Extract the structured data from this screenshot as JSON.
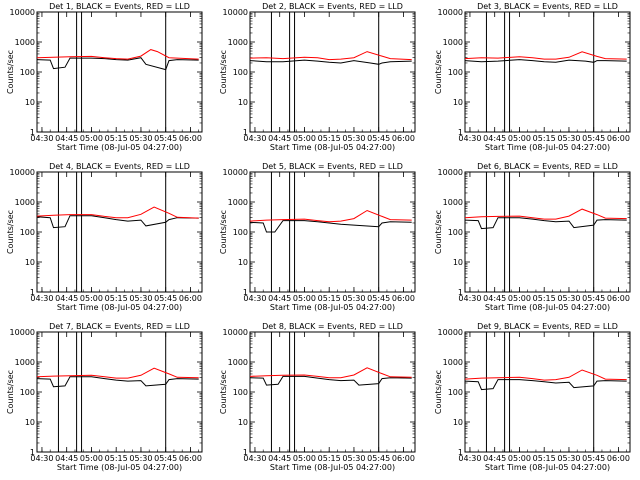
{
  "figure": {
    "ylabel": "Counts/sec",
    "xlabel": "Start Time (08-Jul-05 04:27:00)"
  },
  "chart_data": [
    {
      "type": "line",
      "title": "Det 1, BLACK = Events, RED = LLD",
      "ylabel": "Counts/sec",
      "xlabel": "Start Time (08-Jul-05 04:27:00)",
      "yscale": "log",
      "ylim": [
        1,
        10000
      ],
      "yticks": [
        "1",
        "10",
        "100",
        "1000",
        "10000"
      ],
      "xlim": [
        "04:27",
        "06:07"
      ],
      "xticks": [
        "04:30",
        "04:45",
        "05:00",
        "05:15",
        "05:30",
        "05:45",
        "06:00"
      ],
      "series": [
        {
          "name": "Events",
          "color": "#000000",
          "x": [
            "04:27",
            "04:35",
            "04:37",
            "04:44",
            "04:47",
            "05:00",
            "05:08",
            "05:15",
            "05:22",
            "05:30",
            "05:33",
            "05:45",
            "05:47",
            "05:52",
            "06:05"
          ],
          "y": [
            260,
            250,
            130,
            145,
            290,
            290,
            280,
            260,
            250,
            300,
            180,
            120,
            240,
            260,
            250
          ]
        },
        {
          "name": "LLD",
          "color": "#ff0000",
          "x": [
            "04:27",
            "04:37",
            "04:47",
            "05:00",
            "05:08",
            "05:15",
            "05:22",
            "05:30",
            "05:36",
            "05:40",
            "05:47",
            "05:52",
            "06:05"
          ],
          "y": [
            300,
            310,
            320,
            330,
            300,
            280,
            270,
            340,
            560,
            480,
            300,
            290,
            270
          ]
        }
      ],
      "vlines": [
        "04:40",
        "04:51",
        "04:54",
        "05:45"
      ]
    },
    {
      "type": "line",
      "title": "Det 2, BLACK = Events, RED = LLD",
      "ylabel": "Counts/sec",
      "xlabel": "Start Time (08-Jul-05 04:27:00)",
      "yscale": "log",
      "ylim": [
        1,
        10000
      ],
      "yticks": [
        "1",
        "10",
        "100",
        "1000",
        "10000"
      ],
      "xlim": [
        "04:27",
        "06:07"
      ],
      "xticks": [
        "04:30",
        "04:45",
        "05:00",
        "05:15",
        "05:30",
        "05:45",
        "06:00"
      ],
      "series": [
        {
          "name": "Events",
          "color": "#000000",
          "x": [
            "04:27",
            "04:37",
            "04:47",
            "05:00",
            "05:08",
            "05:15",
            "05:22",
            "05:30",
            "05:40",
            "05:45",
            "05:47",
            "05:52",
            "06:05"
          ],
          "y": [
            240,
            220,
            220,
            250,
            230,
            210,
            200,
            240,
            200,
            180,
            200,
            220,
            230
          ]
        },
        {
          "name": "LLD",
          "color": "#ff0000",
          "x": [
            "04:27",
            "04:37",
            "04:47",
            "05:00",
            "05:08",
            "05:15",
            "05:22",
            "05:30",
            "05:38",
            "05:47",
            "05:52",
            "06:05"
          ],
          "y": [
            290,
            300,
            280,
            310,
            300,
            260,
            270,
            300,
            480,
            340,
            280,
            260
          ]
        }
      ],
      "vlines": [
        "04:40",
        "04:51",
        "04:54",
        "05:45"
      ]
    },
    {
      "type": "line",
      "title": "Det 3, BLACK = Events, RED = LLD",
      "ylabel": "Counts/sec",
      "xlabel": "Start Time (08-Jul-05 04:27:00)",
      "yscale": "log",
      "ylim": [
        1,
        10000
      ],
      "yticks": [
        "1",
        "10",
        "100",
        "1000",
        "10000"
      ],
      "xlim": [
        "04:27",
        "06:07"
      ],
      "xticks": [
        "04:30",
        "04:45",
        "05:00",
        "05:15",
        "05:30",
        "05:45",
        "06:00"
      ],
      "series": [
        {
          "name": "Events",
          "color": "#000000",
          "x": [
            "04:27",
            "04:37",
            "04:47",
            "05:00",
            "05:08",
            "05:15",
            "05:22",
            "05:30",
            "05:40",
            "05:45",
            "05:47",
            "05:52",
            "06:05"
          ],
          "y": [
            240,
            220,
            230,
            260,
            240,
            220,
            210,
            250,
            230,
            210,
            240,
            240,
            230
          ]
        },
        {
          "name": "LLD",
          "color": "#ff0000",
          "x": [
            "04:27",
            "04:37",
            "04:47",
            "05:00",
            "05:08",
            "05:15",
            "05:22",
            "05:30",
            "05:38",
            "05:47",
            "05:52",
            "06:05"
          ],
          "y": [
            280,
            300,
            290,
            320,
            300,
            270,
            270,
            310,
            470,
            330,
            280,
            270
          ]
        }
      ],
      "vlines": [
        "04:40",
        "04:51",
        "04:54",
        "05:45"
      ]
    },
    {
      "type": "line",
      "title": "Det 4, BLACK = Events, RED = LLD",
      "ylabel": "Counts/sec",
      "xlabel": "Start Time (08-Jul-05 04:27:00)",
      "yscale": "log",
      "ylim": [
        1,
        10000
      ],
      "yticks": [
        "1",
        "10",
        "100",
        "1000",
        "10000"
      ],
      "xlim": [
        "04:27",
        "06:07"
      ],
      "xticks": [
        "04:30",
        "04:45",
        "05:00",
        "05:15",
        "05:30",
        "05:45",
        "06:00"
      ],
      "series": [
        {
          "name": "Events",
          "color": "#000000",
          "x": [
            "04:27",
            "04:35",
            "04:37",
            "04:44",
            "04:47",
            "05:00",
            "05:08",
            "05:15",
            "05:22",
            "05:30",
            "05:33",
            "05:45",
            "05:47",
            "05:52",
            "06:05"
          ],
          "y": [
            320,
            300,
            140,
            150,
            350,
            350,
            300,
            260,
            230,
            250,
            160,
            210,
            260,
            300,
            290
          ]
        },
        {
          "name": "LLD",
          "color": "#ff0000",
          "x": [
            "04:27",
            "04:37",
            "04:47",
            "05:00",
            "05:08",
            "05:15",
            "05:22",
            "05:30",
            "05:38",
            "05:47",
            "05:52",
            "06:05"
          ],
          "y": [
            340,
            360,
            380,
            380,
            330,
            300,
            300,
            390,
            680,
            420,
            310,
            290
          ]
        }
      ],
      "vlines": [
        "04:40",
        "04:51",
        "04:54",
        "05:45"
      ]
    },
    {
      "type": "line",
      "title": "Det 5, BLACK = Events, RED = LLD",
      "ylabel": "Counts/sec",
      "xlabel": "Start Time (08-Jul-05 04:27:00)",
      "yscale": "log",
      "ylim": [
        1,
        10000
      ],
      "yticks": [
        "1",
        "10",
        "100",
        "1000",
        "10000"
      ],
      "xlim": [
        "04:27",
        "06:07"
      ],
      "xticks": [
        "04:30",
        "04:45",
        "05:00",
        "05:15",
        "05:30",
        "05:45",
        "06:00"
      ],
      "series": [
        {
          "name": "Events",
          "color": "#000000",
          "x": [
            "04:27",
            "04:35",
            "04:37",
            "04:42",
            "04:47",
            "05:00",
            "05:08",
            "05:15",
            "05:22",
            "05:30",
            "05:45",
            "05:47",
            "05:52",
            "06:05"
          ],
          "y": [
            210,
            200,
            100,
            100,
            240,
            240,
            220,
            200,
            180,
            170,
            150,
            200,
            220,
            210
          ]
        },
        {
          "name": "LLD",
          "color": "#ff0000",
          "x": [
            "04:27",
            "04:37",
            "04:47",
            "05:00",
            "05:08",
            "05:15",
            "05:22",
            "05:30",
            "05:38",
            "05:47",
            "05:52",
            "06:05"
          ],
          "y": [
            230,
            250,
            260,
            270,
            240,
            220,
            230,
            280,
            520,
            330,
            260,
            250
          ]
        }
      ],
      "vlines": [
        "04:40",
        "04:51",
        "04:54",
        "05:45"
      ]
    },
    {
      "type": "line",
      "title": "Det 6, BLACK = Events, RED = LLD",
      "ylabel": "Counts/sec",
      "xlabel": "Start Time (08-Jul-05 04:27:00)",
      "yscale": "log",
      "ylim": [
        1,
        10000
      ],
      "yticks": [
        "1",
        "10",
        "100",
        "1000",
        "10000"
      ],
      "xlim": [
        "04:27",
        "06:07"
      ],
      "xticks": [
        "04:30",
        "04:45",
        "05:00",
        "05:15",
        "05:30",
        "05:45",
        "06:00"
      ],
      "series": [
        {
          "name": "Events",
          "color": "#000000",
          "x": [
            "04:27",
            "04:35",
            "04:37",
            "04:44",
            "04:47",
            "05:00",
            "05:08",
            "05:15",
            "05:22",
            "05:30",
            "05:33",
            "05:45",
            "05:47",
            "05:52",
            "06:05"
          ],
          "y": [
            250,
            240,
            130,
            140,
            300,
            300,
            270,
            240,
            220,
            230,
            140,
            170,
            250,
            260,
            250
          ]
        },
        {
          "name": "LLD",
          "color": "#ff0000",
          "x": [
            "04:27",
            "04:37",
            "04:47",
            "05:00",
            "05:08",
            "05:15",
            "05:22",
            "05:30",
            "05:38",
            "05:47",
            "05:52",
            "06:05"
          ],
          "y": [
            300,
            320,
            330,
            340,
            300,
            270,
            270,
            340,
            580,
            380,
            290,
            280
          ]
        }
      ],
      "vlines": [
        "04:40",
        "04:51",
        "04:54",
        "05:45"
      ]
    },
    {
      "type": "line",
      "title": "Det 7, BLACK = Events, RED = LLD",
      "ylabel": "Counts/sec",
      "xlabel": "Start Time (08-Jul-05 04:27:00)",
      "yscale": "log",
      "ylim": [
        1,
        10000
      ],
      "yticks": [
        "1",
        "10",
        "100",
        "1000",
        "10000"
      ],
      "xlim": [
        "04:27",
        "06:07"
      ],
      "xticks": [
        "04:30",
        "04:45",
        "05:00",
        "05:15",
        "05:30",
        "05:45",
        "06:00"
      ],
      "series": [
        {
          "name": "Events",
          "color": "#000000",
          "x": [
            "04:27",
            "04:35",
            "04:37",
            "04:44",
            "04:47",
            "05:00",
            "05:08",
            "05:15",
            "05:22",
            "05:30",
            "05:33",
            "05:45",
            "05:47",
            "05:52",
            "06:05"
          ],
          "y": [
            280,
            270,
            150,
            160,
            320,
            320,
            280,
            250,
            230,
            240,
            160,
            180,
            260,
            280,
            270
          ]
        },
        {
          "name": "LLD",
          "color": "#ff0000",
          "x": [
            "04:27",
            "04:37",
            "04:47",
            "05:00",
            "05:08",
            "05:15",
            "05:22",
            "05:30",
            "05:38",
            "05:47",
            "05:52",
            "06:05"
          ],
          "y": [
            320,
            340,
            350,
            360,
            320,
            290,
            290,
            360,
            620,
            400,
            310,
            300
          ]
        }
      ],
      "vlines": [
        "04:40",
        "04:51",
        "04:54",
        "05:45"
      ]
    },
    {
      "type": "line",
      "title": "Det 8, BLACK = Events, RED = LLD",
      "ylabel": "Counts/sec",
      "xlabel": "Start Time (08-Jul-05 04:27:00)",
      "yscale": "log",
      "ylim": [
        1,
        10000
      ],
      "yticks": [
        "1",
        "10",
        "100",
        "1000",
        "10000"
      ],
      "xlim": [
        "04:27",
        "06:07"
      ],
      "xticks": [
        "04:30",
        "04:45",
        "05:00",
        "05:15",
        "05:30",
        "05:45",
        "06:00"
      ],
      "series": [
        {
          "name": "Events",
          "color": "#000000",
          "x": [
            "04:27",
            "04:35",
            "04:37",
            "04:44",
            "04:47",
            "05:00",
            "05:08",
            "05:15",
            "05:22",
            "05:30",
            "05:33",
            "05:45",
            "05:47",
            "05:52",
            "06:05"
          ],
          "y": [
            300,
            290,
            170,
            180,
            330,
            330,
            290,
            260,
            240,
            250,
            170,
            190,
            280,
            300,
            290
          ]
        },
        {
          "name": "LLD",
          "color": "#ff0000",
          "x": [
            "04:27",
            "04:37",
            "04:47",
            "05:00",
            "05:08",
            "05:15",
            "05:22",
            "05:30",
            "05:38",
            "05:47",
            "05:52",
            "06:05"
          ],
          "y": [
            330,
            350,
            360,
            370,
            330,
            300,
            300,
            370,
            640,
            410,
            320,
            310
          ]
        }
      ],
      "vlines": [
        "04:40",
        "04:51",
        "04:54",
        "05:45"
      ]
    },
    {
      "type": "line",
      "title": "Det 9, BLACK = Events, RED = LLD",
      "ylabel": "Counts/sec",
      "xlabel": "Start Time (08-Jul-05 04:27:00)",
      "yscale": "log",
      "ylim": [
        1,
        10000
      ],
      "yticks": [
        "1",
        "10",
        "100",
        "1000",
        "10000"
      ],
      "xlim": [
        "04:27",
        "06:07"
      ],
      "xticks": [
        "04:30",
        "04:45",
        "05:00",
        "05:15",
        "05:30",
        "05:45",
        "06:00"
      ],
      "series": [
        {
          "name": "Events",
          "color": "#000000",
          "x": [
            "04:27",
            "04:35",
            "04:37",
            "04:44",
            "04:47",
            "05:00",
            "05:08",
            "05:15",
            "05:22",
            "05:30",
            "05:33",
            "05:45",
            "05:47",
            "05:52",
            "06:05"
          ],
          "y": [
            230,
            220,
            120,
            130,
            260,
            260,
            240,
            220,
            200,
            210,
            140,
            160,
            230,
            240,
            230
          ]
        },
        {
          "name": "LLD",
          "color": "#ff0000",
          "x": [
            "04:27",
            "04:37",
            "04:47",
            "05:00",
            "05:08",
            "05:15",
            "05:22",
            "05:30",
            "05:38",
            "05:47",
            "05:52",
            "06:05"
          ],
          "y": [
            270,
            290,
            300,
            310,
            280,
            250,
            260,
            310,
            540,
            360,
            270,
            260
          ]
        }
      ],
      "vlines": [
        "04:40",
        "04:51",
        "04:54",
        "05:45"
      ]
    }
  ]
}
